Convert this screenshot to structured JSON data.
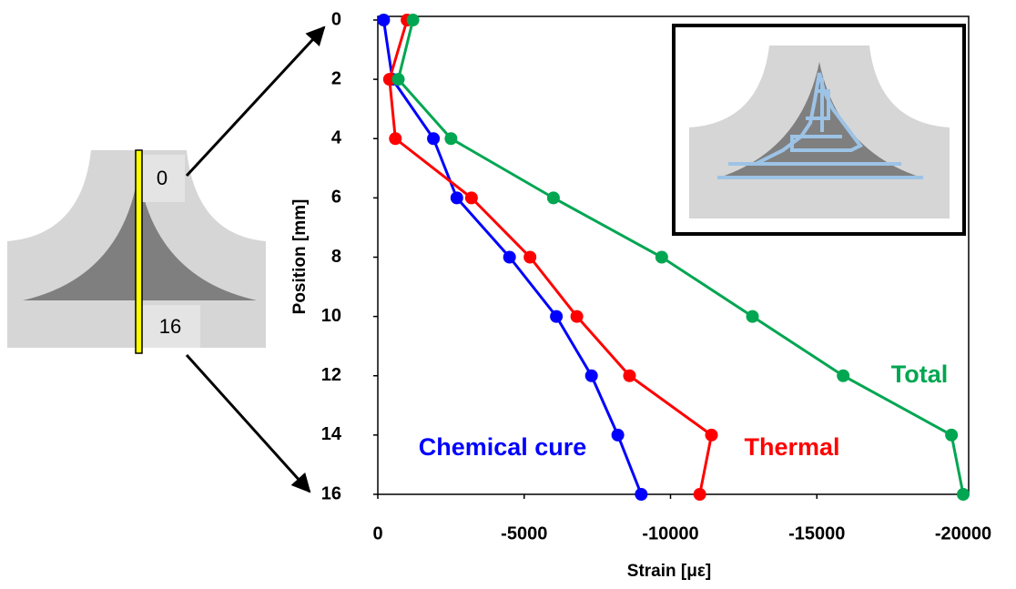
{
  "chart_data": {
    "type": "line",
    "orientation": "horizontal",
    "xlabel": "Strain [με]",
    "ylabel": "Position [mm]",
    "x": [
      0,
      2,
      4,
      6,
      8,
      10,
      12,
      14,
      16
    ],
    "series": [
      {
        "name": "Chemical cure",
        "color": "#0000ff",
        "values": [
          -200,
          -500,
          -1900,
          -2700,
          -4500,
          -6100,
          -7300,
          -8200,
          -9000
        ]
      },
      {
        "name": "Thermal",
        "color": "#ff0000",
        "values": [
          -1000,
          -400,
          -600,
          -3200,
          -5200,
          -6800,
          -8600,
          -11400,
          -11000
        ]
      },
      {
        "name": "Total",
        "color": "#00a651",
        "values": [
          -1200,
          -700,
          -2500,
          -6000,
          -9700,
          -12800,
          -15900,
          -19600,
          -20000
        ]
      }
    ],
    "xlim": [
      0,
      -20000
    ],
    "xticks": [
      0,
      -5000,
      -10000,
      -15000,
      -20000
    ],
    "ylim": [
      16,
      0
    ],
    "yticks": [
      0,
      2,
      4,
      6,
      8,
      10,
      12,
      14,
      16
    ],
    "grid": false
  },
  "diagram": {
    "top_label": "0",
    "bottom_label": "16"
  }
}
